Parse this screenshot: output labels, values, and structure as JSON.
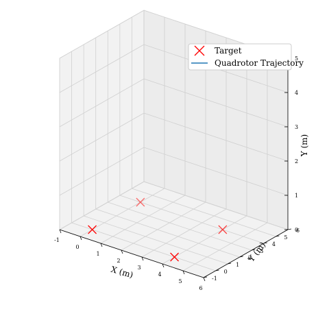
{
  "chart_data": {
    "type": "scatter",
    "projection": "3d",
    "axes": {
      "x": {
        "label": "X (m)",
        "range": [
          -1,
          6
        ],
        "ticks": [
          "-1",
          "0",
          "1",
          "2",
          "3",
          "4",
          "5",
          "6"
        ]
      },
      "y": {
        "label": "Y (m)",
        "range": [
          -1,
          6
        ],
        "ticks": [
          "-1",
          "0",
          "1",
          "2",
          "3",
          "4",
          "5",
          "6"
        ]
      },
      "z": {
        "label": "Y (m)",
        "range": [
          0,
          5
        ],
        "ticks": [
          "0",
          "1",
          "2",
          "3",
          "4",
          "5"
        ]
      }
    },
    "grid": true,
    "legend": {
      "placement": "top-right",
      "entries": [
        {
          "label": "Target",
          "marker": "x",
          "color": "#ff0000"
        },
        {
          "label": "Quadrotor Trajectory",
          "marker": "line",
          "color": "#1f77b4"
        }
      ]
    },
    "series": [
      {
        "name": "Target",
        "marker": "x",
        "color": "#ff0000",
        "points": [
          {
            "x": 0,
            "y": 0,
            "z": 0
          },
          {
            "x": 0,
            "y": 4,
            "z": 0
          },
          {
            "x": 4,
            "y": 0,
            "z": 0
          },
          {
            "x": 4,
            "y": 4,
            "z": 0
          }
        ]
      },
      {
        "name": "Quadrotor Trajectory",
        "color": "#1f77b4",
        "points": []
      }
    ]
  }
}
